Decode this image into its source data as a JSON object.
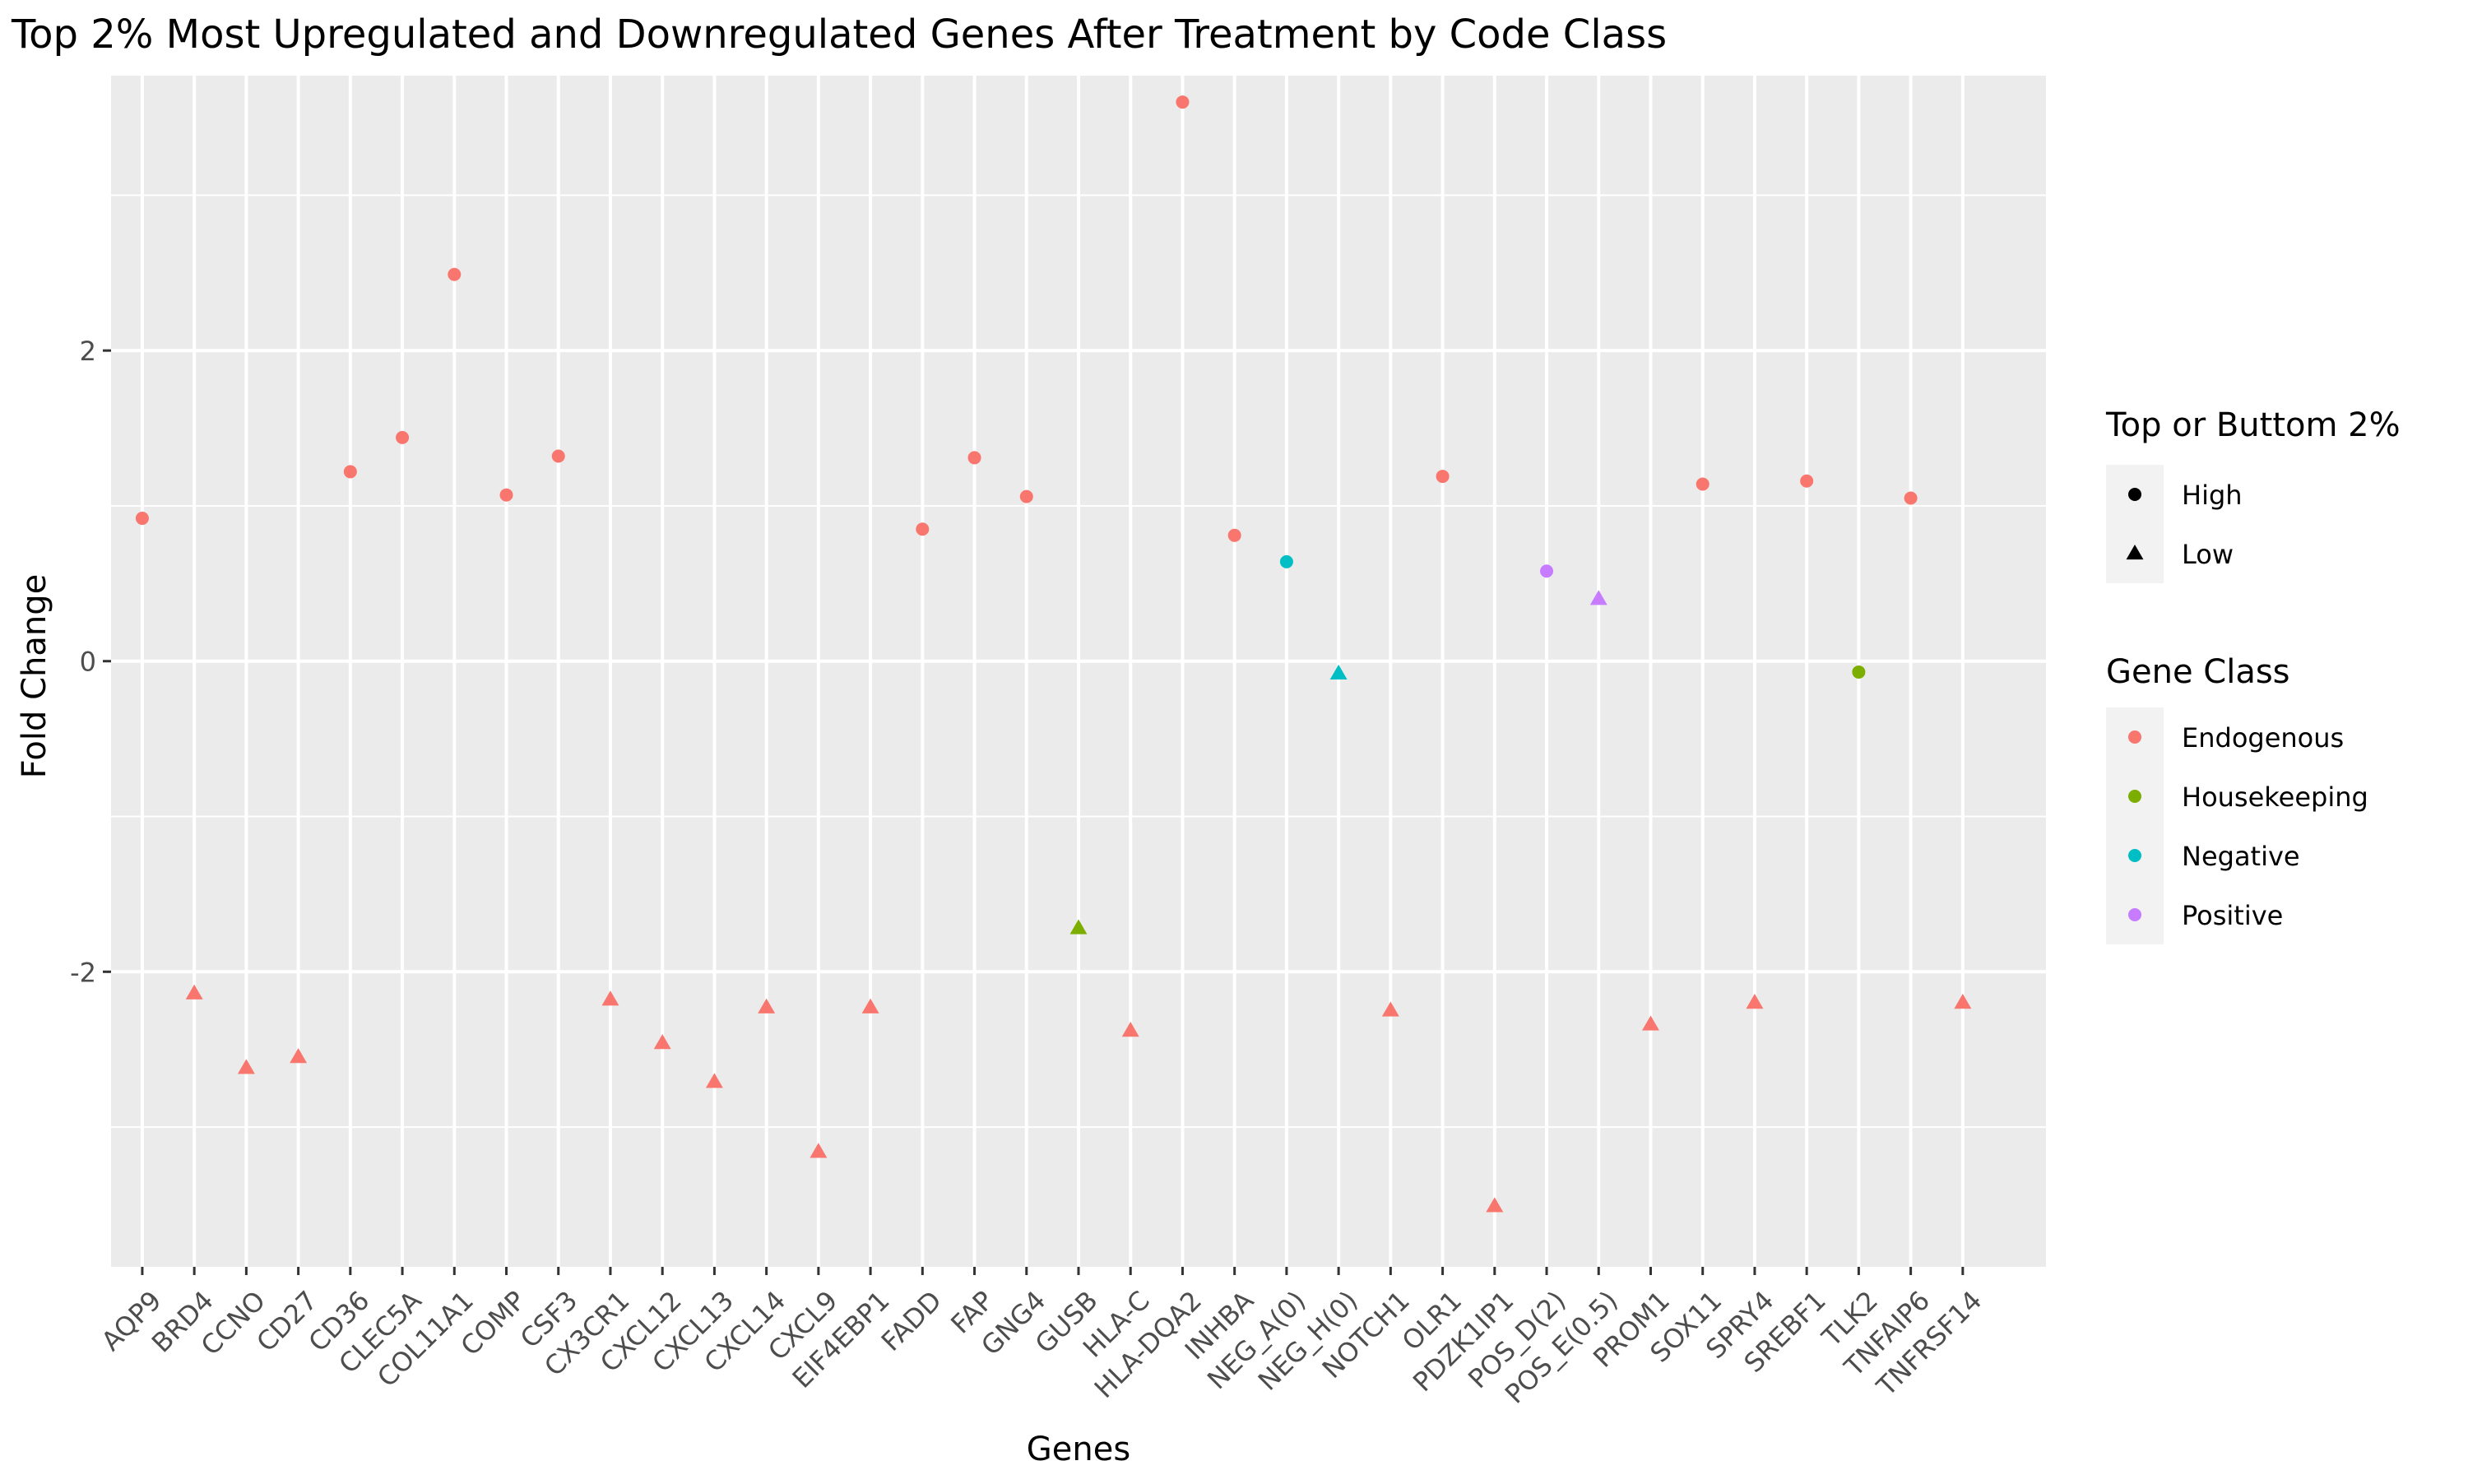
{
  "chart_data": {
    "type": "scatter",
    "title": "Top 2% Most Upregulated and Downregulated Genes After Treatment by Code Class",
    "xlabel": "Genes",
    "ylabel": "Fold Change",
    "ylim": [
      -3.9,
      3.77
    ],
    "yticks": [
      -2,
      0,
      2
    ],
    "ytick_labels": [
      "-2",
      "0",
      "2"
    ],
    "grid": true,
    "legend_position": "right",
    "categories": [
      "AQP9",
      "BRD4",
      "CCNO",
      "CD27",
      "CD36",
      "CLEC5A",
      "COL11A1",
      "COMP",
      "CSF3",
      "CX3CR1",
      "CXCL12",
      "CXCL13",
      "CXCL14",
      "CXCL9",
      "EIF4EBP1",
      "FADD",
      "FAP",
      "GNG4",
      "GUSB",
      "HLA-C",
      "HLA-DQA2",
      "INHBA",
      "NEG_A(0)",
      "NEG_H(0)",
      "NOTCH1",
      "OLR1",
      "PDZK1IP1",
      "POS_D(2)",
      "POS_E(0.5)",
      "PROM1",
      "SOX11",
      "SPRY4",
      "SREBF1",
      "TLK2",
      "TNFAIP6",
      "TNFRSF14"
    ],
    "points": [
      {
        "gene": "AQP9",
        "y": 0.92,
        "shape": "High",
        "class": "Endogenous"
      },
      {
        "gene": "BRD4",
        "y": -2.14,
        "shape": "Low",
        "class": "Endogenous"
      },
      {
        "gene": "CCNO",
        "y": -2.62,
        "shape": "Low",
        "class": "Endogenous"
      },
      {
        "gene": "CD27",
        "y": -2.55,
        "shape": "Low",
        "class": "Endogenous"
      },
      {
        "gene": "CD36",
        "y": 1.22,
        "shape": "High",
        "class": "Endogenous"
      },
      {
        "gene": "CLEC5A",
        "y": 1.44,
        "shape": "High",
        "class": "Endogenous"
      },
      {
        "gene": "COL11A1",
        "y": 2.49,
        "shape": "High",
        "class": "Endogenous"
      },
      {
        "gene": "COMP",
        "y": 1.07,
        "shape": "High",
        "class": "Endogenous"
      },
      {
        "gene": "CSF3",
        "y": 1.32,
        "shape": "High",
        "class": "Endogenous"
      },
      {
        "gene": "CX3CR1",
        "y": -2.18,
        "shape": "Low",
        "class": "Endogenous"
      },
      {
        "gene": "CXCL12",
        "y": -2.46,
        "shape": "Low",
        "class": "Endogenous"
      },
      {
        "gene": "CXCL13",
        "y": -2.71,
        "shape": "Low",
        "class": "Endogenous"
      },
      {
        "gene": "CXCL14",
        "y": -2.23,
        "shape": "Low",
        "class": "Endogenous"
      },
      {
        "gene": "CXCL9",
        "y": -3.16,
        "shape": "Low",
        "class": "Endogenous"
      },
      {
        "gene": "EIF4EBP1",
        "y": -2.23,
        "shape": "Low",
        "class": "Endogenous"
      },
      {
        "gene": "FADD",
        "y": 0.85,
        "shape": "High",
        "class": "Endogenous"
      },
      {
        "gene": "FAP",
        "y": 1.31,
        "shape": "High",
        "class": "Endogenous"
      },
      {
        "gene": "GNG4",
        "y": 1.06,
        "shape": "High",
        "class": "Endogenous"
      },
      {
        "gene": "GUSB",
        "y": -1.72,
        "shape": "Low",
        "class": "Housekeeping"
      },
      {
        "gene": "HLA-C",
        "y": -2.38,
        "shape": "Low",
        "class": "Endogenous"
      },
      {
        "gene": "HLA-DQA2",
        "y": 3.6,
        "shape": "High",
        "class": "Endogenous"
      },
      {
        "gene": "INHBA",
        "y": 0.81,
        "shape": "High",
        "class": "Endogenous"
      },
      {
        "gene": "NEG_A(0)",
        "y": 0.64,
        "shape": "High",
        "class": "Negative"
      },
      {
        "gene": "NEG_H(0)",
        "y": -0.08,
        "shape": "Low",
        "class": "Negative"
      },
      {
        "gene": "NOTCH1",
        "y": -2.25,
        "shape": "Low",
        "class": "Endogenous"
      },
      {
        "gene": "OLR1",
        "y": 1.19,
        "shape": "High",
        "class": "Endogenous"
      },
      {
        "gene": "PDZK1IP1",
        "y": -3.51,
        "shape": "Low",
        "class": "Endogenous"
      },
      {
        "gene": "POS_D(2)",
        "y": 0.58,
        "shape": "High",
        "class": "Positive"
      },
      {
        "gene": "POS_E(0.5)",
        "y": 0.4,
        "shape": "Low",
        "class": "Positive"
      },
      {
        "gene": "PROM1",
        "y": -2.34,
        "shape": "Low",
        "class": "Endogenous"
      },
      {
        "gene": "SOX11",
        "y": 1.14,
        "shape": "High",
        "class": "Endogenous"
      },
      {
        "gene": "SPRY4",
        "y": -2.2,
        "shape": "Low",
        "class": "Endogenous"
      },
      {
        "gene": "SREBF1",
        "y": 1.16,
        "shape": "High",
        "class": "Endogenous"
      },
      {
        "gene": "TLK2",
        "y": -0.07,
        "shape": "High",
        "class": "Housekeeping"
      },
      {
        "gene": "TNFAIP6",
        "y": 1.05,
        "shape": "High",
        "class": "Endogenous"
      },
      {
        "gene": "TNFRSF14",
        "y": -2.2,
        "shape": "Low",
        "class": "Endogenous"
      }
    ],
    "legend_shape": {
      "title": "Top or Buttom 2%",
      "items": [
        {
          "label": "High",
          "shape": "circle"
        },
        {
          "label": "Low",
          "shape": "triangle"
        }
      ]
    },
    "legend_color": {
      "title": "Gene Class",
      "items": [
        {
          "label": "Endogenous",
          "color": "#F8766D"
        },
        {
          "label": "Housekeeping",
          "color": "#7CAE00"
        },
        {
          "label": "Negative",
          "color": "#00BFC4"
        },
        {
          "label": "Positive",
          "color": "#C77CFF"
        }
      ]
    }
  }
}
